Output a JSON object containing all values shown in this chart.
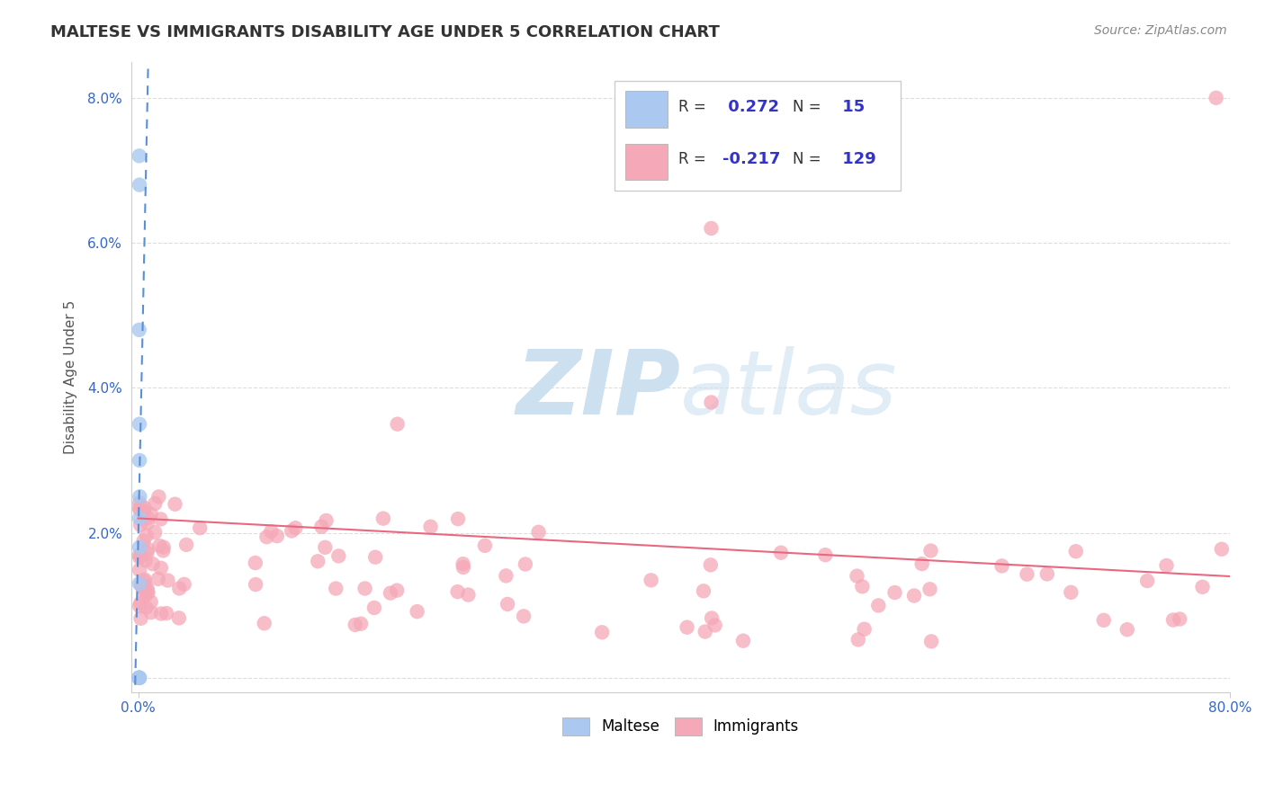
{
  "title": "MALTESE VS IMMIGRANTS DISABILITY AGE UNDER 5 CORRELATION CHART",
  "source": "Source: ZipAtlas.com",
  "ylabel": "Disability Age Under 5",
  "xlim": [
    -0.005,
    0.8
  ],
  "ylim": [
    -0.002,
    0.085
  ],
  "xticks": [
    0.0,
    0.8
  ],
  "xticklabels": [
    "0.0%",
    "80.0%"
  ],
  "yticks": [
    0.0,
    0.02,
    0.04,
    0.06,
    0.08
  ],
  "yticklabels": [
    "",
    "2.0%",
    "4.0%",
    "6.0%",
    "8.0%"
  ],
  "maltese_color": "#aac8f0",
  "immigrants_color": "#f5a8b8",
  "maltese_trend_color": "#5590d8",
  "immigrants_trend_color": "#e86880",
  "maltese_R": 0.272,
  "maltese_N": 15,
  "immigrants_R": -0.217,
  "immigrants_N": 129,
  "legend_label_color": "#333333",
  "legend_value_color": "#3333cc",
  "watermark_color": "#cce0f0",
  "background_color": "#ffffff",
  "grid_color": "#dddddd",
  "imm_trend_start_y": 0.022,
  "imm_trend_end_y": 0.014,
  "malt_trend_intercept": 0.0185,
  "malt_trend_slope": 9.0
}
